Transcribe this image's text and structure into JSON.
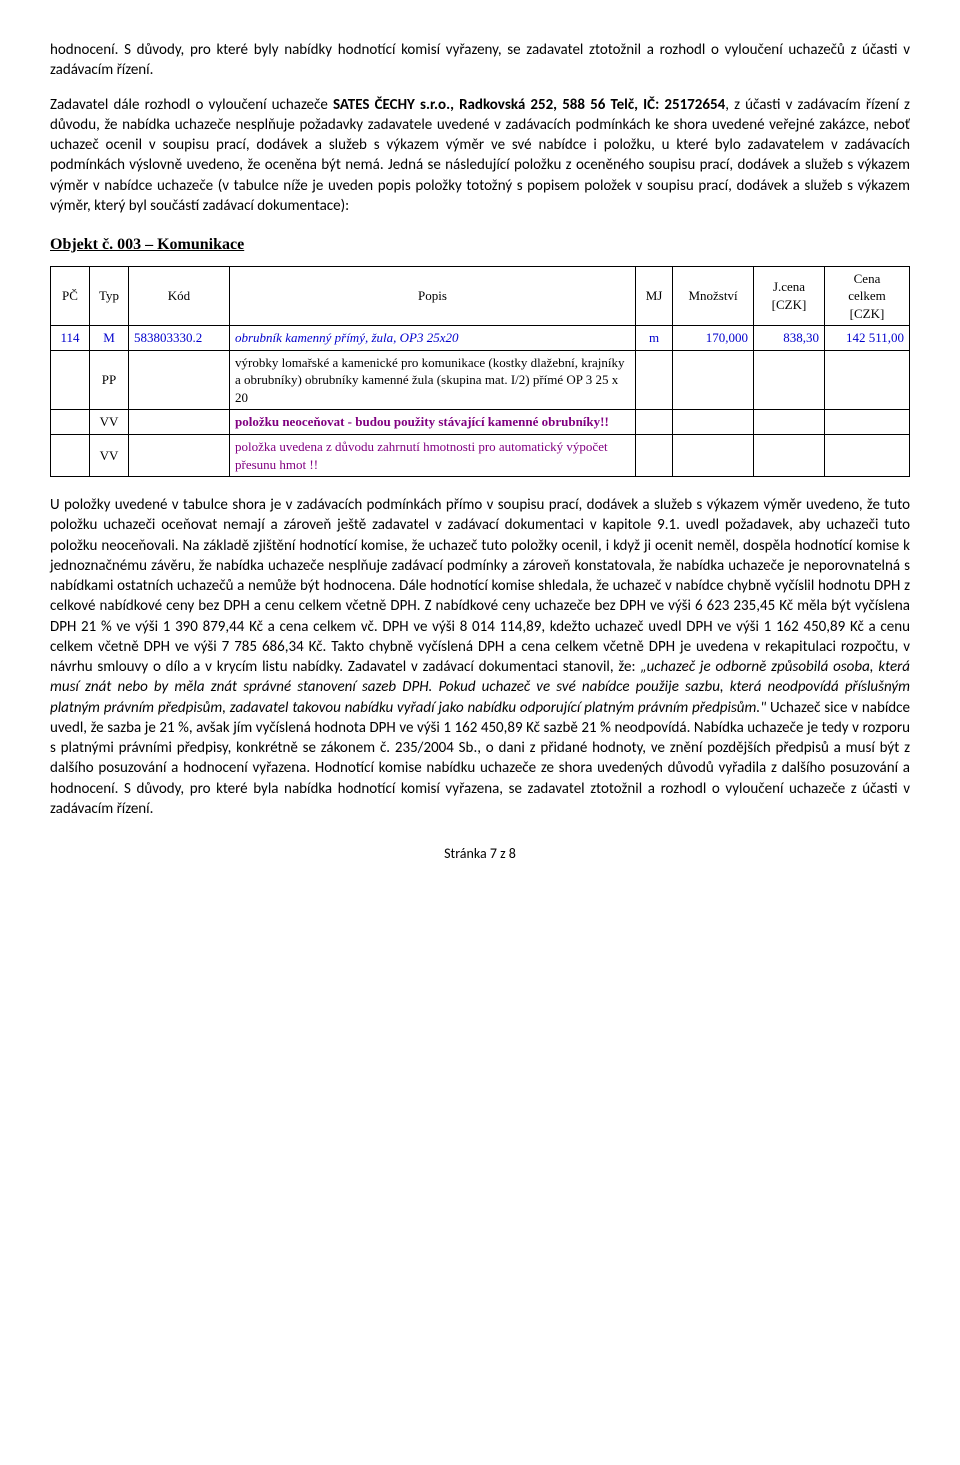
{
  "para1_a": "hodnocení. S důvody, pro které byly nabídky hodnotící komisí vyřazeny, se zadavatel ztotožnil a rozhodl o vyloučení uchazečů z účasti v zadávacím řízení.",
  "para2_a": "Zadavatel dále rozhodl o vyloučení uchazeče ",
  "para2_bold": "SATES ČECHY s.r.o., Radkovská 252, 588 56 Telč, IČ: 25172654",
  "para2_b": ", z účasti v zadávacím řízení z důvodu, že nabídka uchazeče nesplňuje požadavky zadavatele uvedené v zadávacích podmínkách ke shora uvedené veřejné zakázce, neboť uchazeč ocenil v soupisu prací, dodávek a služeb s výkazem výměr ve své nabídce i položku, u které bylo zadavatelem v zadávacích podmínkách výslovně uvedeno, že oceněna být nemá. Jedná se následující položku z oceněného soupisu prací, dodávek a služeb s výkazem výměr v nabídce uchazeče (v tabulce níže je uveden popis položky totožný s popisem položek v soupisu prací, dodávek a služeb s výkazem výměr, který byl součástí zadávací dokumentace):",
  "heading": "Objekt č. 003 – Komunikace",
  "th": {
    "pc": "PČ",
    "typ": "Typ",
    "kod": "Kód",
    "popis": "Popis",
    "mj": "MJ",
    "mnozstvi": "Množství",
    "jcena_a": "J.cena",
    "jcena_b": "[CZK]",
    "cena_a": "Cena",
    "cena_b": "celkem",
    "cena_c": "[CZK]"
  },
  "row1": {
    "pc": "114",
    "typ": "M",
    "kod": "583803330.2",
    "popis": "obrubník kamenný přímý, žula, OP3 25x20",
    "mj": "m",
    "mnozstvi": "170,000",
    "jcena": "838,30",
    "cena": "142 511,00"
  },
  "row_pp": {
    "typ": "PP",
    "popis": "výrobky lomařské a kamenické pro komunikace (kostky dlažební, krajníky a obrubníky) obrubníky kamenné žula (skupina mat. I/2) přímé OP 3  25 x 20"
  },
  "row_vv1": {
    "typ": "VV",
    "popis": "položku neoceňovat - budou použity stávající kamenné obrubníky!!"
  },
  "row_vv2": {
    "typ": "VV",
    "popis": "položka uvedena z důvodu zahrnutí hmotnosti pro automatický výpočet přesunu hmot !!"
  },
  "para3_a": "U položky uvedené v tabulce shora je v zadávacích podmínkách přímo v soupisu prací, dodávek a služeb s výkazem výměr uvedeno, že tuto položku uchazeči oceňovat nemají a zároveň ještě zadavatel v zadávací dokumentaci v kapitole 9.1. uvedl požadavek, aby uchazeči tuto položku neoceňovali. Na základě zjištění hodnotící komise, že uchazeč tuto položky ocenil, i když ji ocenit neměl, dospěla hodnotící komise k jednoznačnému závěru, že nabídka uchazeče nesplňuje zadávací podmínky a zároveň konstatovala, že nabídka uchazeče je neporovnatelná s nabídkami ostatních uchazečů a nemůže být hodnocena. Dále hodnotící komise shledala, že uchazeč v nabídce chybně vyčíslil hodnotu DPH z celkové nabídkové ceny bez DPH a cenu celkem včetně DPH. Z nabídkové ceny uchazeče bez DPH ve výši 6 623 235,45 Kč měla být vyčíslena DPH 21 % ve výši 1 390 879,44 Kč a cena celkem vč. DPH ve výši 8 014 114,89, kdežto uchazeč uvedl DPH ve výši 1 162 450,89 Kč a cenu celkem včetně DPH ve výši 7 785 686,34 Kč. Takto chybně vyčíslená DPH a cena celkem včetně DPH je uvedena v rekapitulaci rozpočtu, v návrhu smlouvy o dílo a v krycím listu nabídky. Zadavatel v zadávací dokumentaci stanovil, že: ",
  "para3_quote": "„uchazeč je odborně způsobilá osoba, která musí znát nebo by měla znát správné stanovení sazeb DPH. Pokud uchazeč ve své nabídce použije sazbu, která neodpovídá příslušným platným právním předpisům, zadavatel takovou nabídku vyřadí jako nabídku odporující platným právním předpisům.\"",
  "para3_b": " Uchazeč sice v nabídce uvedl, že sazba je 21 %, avšak jím vyčíslená hodnota DPH ve výši 1 162 450,89 Kč sazbě 21 % neodpovídá. Nabídka uchazeče je tedy v rozporu s platnými právními předpisy, konkrétně se zákonem č. 235/2004 Sb., o dani z přidané hodnoty, ve znění pozdějších předpisů a musí být z dalšího posuzování a hodnocení vyřazena. Hodnotící komise nabídku uchazeče ze shora uvedených důvodů vyřadila z dalšího posuzování a hodnocení. S důvody, pro které byla nabídka hodnotící komisí vyřazena, se zadavatel ztotožnil a rozhodl o vyloučení uchazeče z účasti v zadávacím řízení.",
  "footer": "Stránka 7 z 8"
}
